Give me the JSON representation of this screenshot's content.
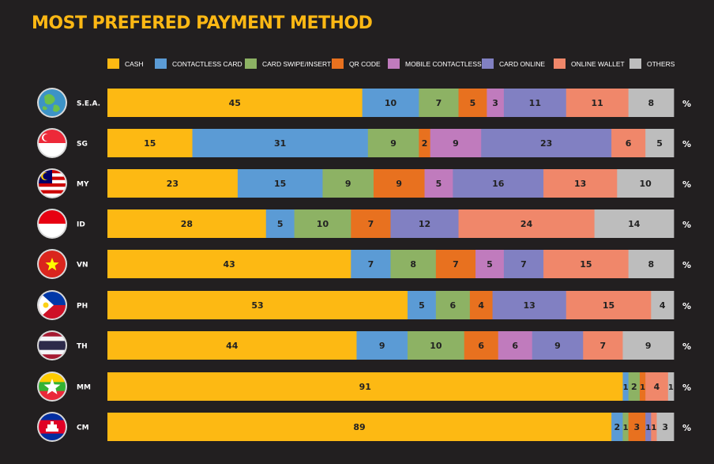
{
  "chart_data": {
    "type": "bar",
    "orientation": "horizontal-stacked",
    "title": "MOST PREFERED PAYMENT METHOD",
    "unit": "%",
    "categories": [
      "S.E.A.",
      "SG",
      "MY",
      "ID",
      "VN",
      "PH",
      "TH",
      "MM",
      "CM"
    ],
    "legend_position": "top",
    "series": [
      {
        "name": "CASH",
        "color": "#fdb913",
        "values": [
          45,
          15,
          23,
          28,
          43,
          53,
          44,
          91,
          89
        ]
      },
      {
        "name": "CONTACTLESS CARD",
        "color": "#5b9bd5",
        "values": [
          10,
          31,
          15,
          5,
          7,
          5,
          9,
          1,
          2
        ]
      },
      {
        "name": "CARD SWIPE/INSERT",
        "color": "#8db264",
        "values": [
          7,
          9,
          9,
          10,
          8,
          6,
          10,
          2,
          1
        ]
      },
      {
        "name": "QR CODE",
        "color": "#e8711f",
        "values": [
          5,
          2,
          9,
          7,
          7,
          4,
          6,
          1,
          3
        ]
      },
      {
        "name": "MOBILE CONTACTLESS",
        "color": "#c07bbd",
        "values": [
          3,
          9,
          5,
          0,
          5,
          0,
          6,
          0,
          0
        ]
      },
      {
        "name": "CARD ONLINE",
        "color": "#8180c2",
        "values": [
          11,
          23,
          16,
          12,
          7,
          13,
          9,
          0,
          1
        ]
      },
      {
        "name": "ONLINE WALLET",
        "color": "#f0876a",
        "values": [
          11,
          6,
          13,
          24,
          15,
          15,
          7,
          4,
          1
        ]
      },
      {
        "name": "OTHERS",
        "color": "#bdbdbd",
        "values": [
          8,
          5,
          10,
          14,
          8,
          4,
          9,
          1,
          3
        ]
      }
    ],
    "flags": [
      "globe-icon",
      "singapore-flag-icon",
      "malaysia-flag-icon",
      "indonesia-flag-icon",
      "vietnam-flag-icon",
      "philippines-flag-icon",
      "thailand-flag-icon",
      "myanmar-flag-icon",
      "cambodia-flag-icon"
    ]
  }
}
